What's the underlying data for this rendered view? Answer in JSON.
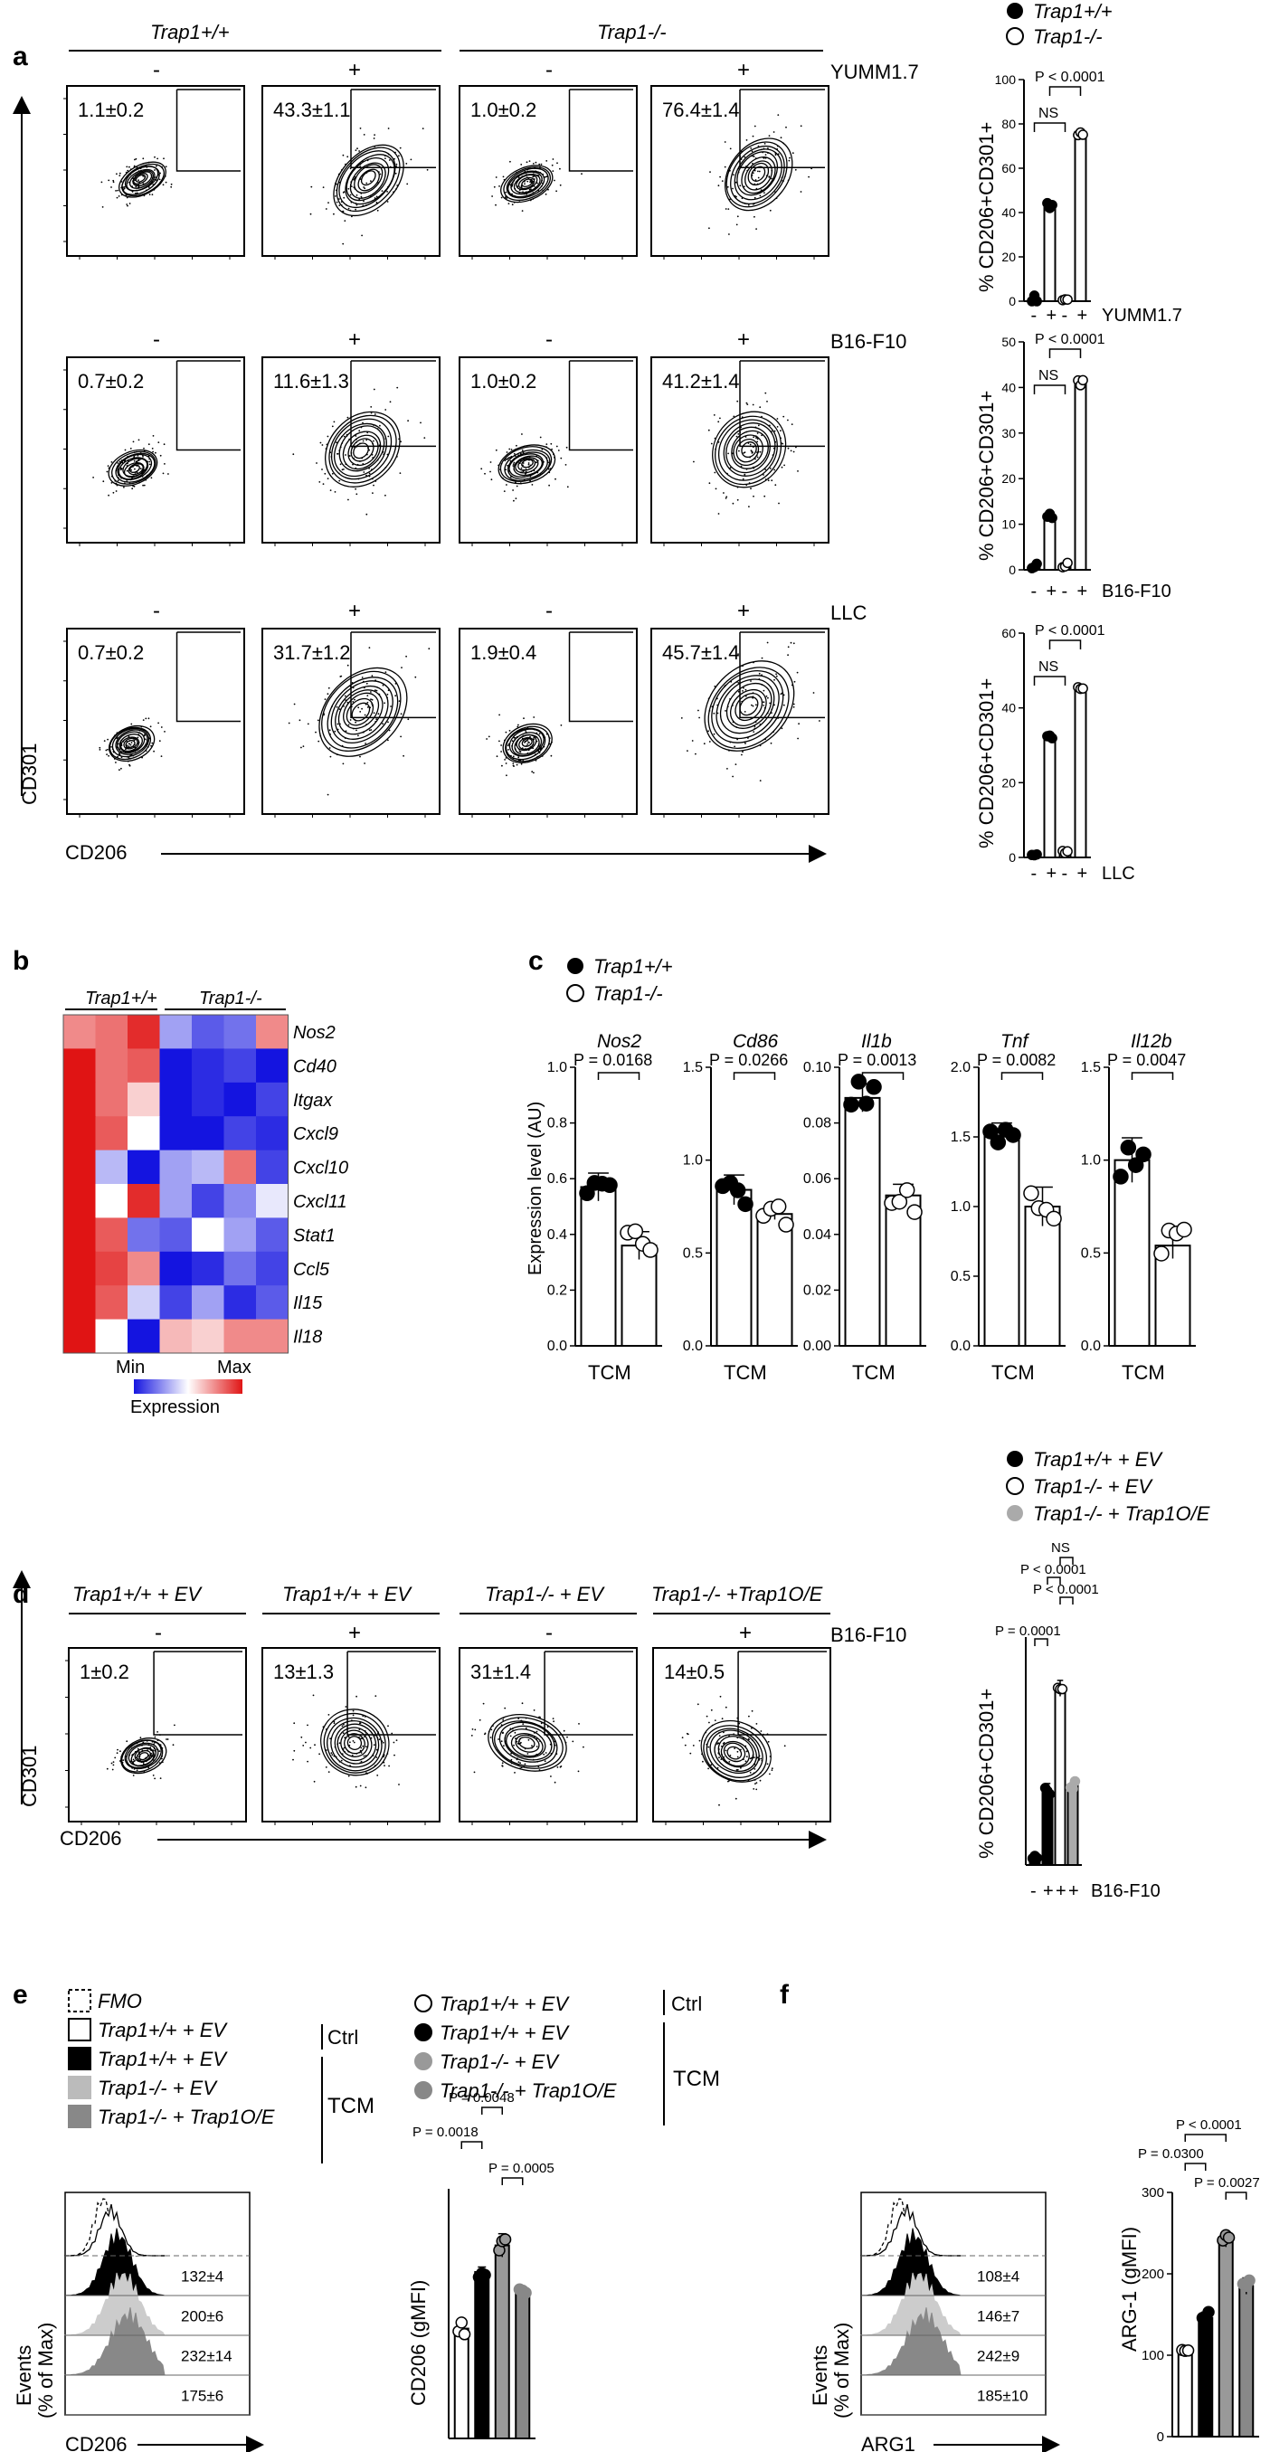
{
  "panel_a": {
    "label": "a",
    "group_headers": [
      "Trap1+/+",
      "Trap1-/-"
    ],
    "signs": [
      "-",
      "+",
      "-",
      "+"
    ],
    "row_labels": [
      "YUMM1.7",
      "B16-F10",
      "LLC"
    ],
    "percentages": [
      [
        "1.1±0.2",
        "43.3±1.1",
        "1.0±0.2",
        "76.4±1.4"
      ],
      [
        "0.7±0.2",
        "11.6±1.3",
        "1.0±0.2",
        "41.2±1.4"
      ],
      [
        "0.7±0.2",
        "31.7±1.2",
        "1.9±0.4",
        "45.7±1.4"
      ]
    ],
    "y_axis_label": "CD301",
    "x_axis_label": "CD206",
    "legend": [
      "Trap1+/+",
      "Trap1-/-"
    ]
  },
  "panel_b": {
    "label": "b",
    "group_headers": [
      "Trap1+/+",
      "Trap1-/-"
    ],
    "genes": [
      "Nos2",
      "Cd40",
      "Itgax",
      "Cxcl9",
      "Cxcl10",
      "Cxcl11",
      "Stat1",
      "Ccl5",
      "Il15",
      "Il18"
    ],
    "scale_min": "Min",
    "scale_max": "Max",
    "scale_title": "Expression"
  },
  "panel_c": {
    "label": "c",
    "legend": [
      "Trap1+/+",
      "Trap1-/-"
    ],
    "y_axis_label": "Expression level (AU)",
    "x_label": "TCM"
  },
  "panel_d": {
    "label": "d",
    "headers": [
      "Trap1+/+ + EV",
      "Trap1+/+ + EV",
      "Trap1-/- + EV",
      "Trap1-/- +Trap1O/E"
    ],
    "signs": [
      "-",
      "+",
      "-",
      "+"
    ],
    "row_label": "B16-F10",
    "percentages": [
      "1±0.2",
      "13±1.3",
      "31±1.4",
      "14±0.5"
    ],
    "y_axis_label": "CD301",
    "x_axis_label": "CD206",
    "legend": [
      "Trap1+/+ + EV",
      "Trap1-/- + EV",
      "Trap1-/- + Trap1O/E"
    ]
  },
  "panel_e": {
    "label": "e",
    "legend_left": [
      "FMO",
      "Trap1+/+ + EV",
      "Trap1+/+ + EV",
      "Trap1-/- + EV",
      "Trap1-/- + Trap1O/E"
    ],
    "legend_right": [
      "Trap1+/+ + EV",
      "Trap1+/+ + EV",
      "Trap1-/- + EV",
      "Trap1-/- + Trap1O/E"
    ],
    "ctrl": "Ctrl",
    "tcm": "TCM",
    "hist_values": [
      "132±4",
      "200±6",
      "232±14",
      "175±6"
    ],
    "hist_y_label_1": "Events",
    "hist_y_label_2": "(% of Max)",
    "hist_x_label": "CD206"
  },
  "panel_f": {
    "label": "f",
    "hist_values": [
      "108±4",
      "146±7",
      "242±9",
      "185±10"
    ],
    "hist_y_label_1": "Events",
    "hist_y_label_2": "(% of Max)",
    "hist_x_label": "ARG1"
  },
  "chart_data": [
    {
      "type": "bar",
      "panel": "a",
      "condition": "YUMM1.7",
      "categories": [
        "-",
        "+",
        "-",
        "+"
      ],
      "values": [
        1.1,
        43.3,
        1.0,
        76.4
      ],
      "ylabel": "% CD206+CD301+",
      "ylim": [
        0,
        100
      ],
      "yticks": [
        0,
        20,
        40,
        60,
        80,
        100
      ],
      "annotations": [
        "P < 0.0001",
        "NS"
      ]
    },
    {
      "type": "bar",
      "panel": "a",
      "condition": "B16-F10",
      "categories": [
        "-",
        "+",
        "-",
        "+"
      ],
      "values": [
        0.7,
        11.6,
        1.0,
        41.2
      ],
      "ylabel": "% CD206+CD301+",
      "ylim": [
        0,
        50
      ],
      "yticks": [
        0,
        10,
        20,
        30,
        40,
        50
      ],
      "annotations": [
        "P < 0.0001",
        "NS"
      ]
    },
    {
      "type": "bar",
      "panel": "a",
      "condition": "LLC",
      "categories": [
        "-",
        "+",
        "-",
        "+"
      ],
      "values": [
        0.7,
        31.7,
        1.9,
        45.7
      ],
      "ylabel": "% CD206+CD301+",
      "ylim": [
        0,
        60
      ],
      "yticks": [
        0,
        20,
        40,
        60
      ],
      "annotations": [
        "P < 0.0001",
        "NS"
      ]
    },
    {
      "type": "heatmap",
      "panel": "b",
      "rows": [
        "Nos2",
        "Cd40",
        "Itgax",
        "Cxcl9",
        "Cxcl10",
        "Cxcl11",
        "Stat1",
        "Ccl5",
        "Il15",
        "Il18"
      ],
      "values": [
        [
          0.75,
          0.8,
          0.95,
          0.3,
          0.15,
          0.2,
          0.75
        ],
        [
          1,
          0.8,
          0.85,
          0,
          0.05,
          0.1,
          0
        ],
        [
          1,
          0.8,
          0.6,
          0,
          0.05,
          0,
          0.1
        ],
        [
          1,
          0.85,
          0.5,
          0,
          0,
          0.1,
          0.05
        ],
        [
          1,
          0.35,
          0,
          0.3,
          0.35,
          0.8,
          0.1
        ],
        [
          1,
          0.5,
          0.95,
          0.3,
          0.1,
          0.25,
          0.45
        ],
        [
          1,
          0.85,
          0.2,
          0.15,
          0.5,
          0.3,
          0.15
        ],
        [
          1,
          0.9,
          0.75,
          0,
          0.05,
          0.2,
          0.1
        ],
        [
          1,
          0.85,
          0.4,
          0.1,
          0.3,
          0.05,
          0.15
        ],
        [
          1,
          0.5,
          0,
          0.65,
          0.6,
          0.75,
          0.75
        ]
      ]
    },
    {
      "type": "bar",
      "panel": "c",
      "gene": "Nos2",
      "categories": [
        "Trap1+/+",
        "Trap1-/-"
      ],
      "values": [
        0.57,
        0.36
      ],
      "ylim": [
        0,
        1.0
      ],
      "yticks": [
        0,
        0.2,
        0.4,
        0.6,
        0.8,
        1.0
      ],
      "p": "P = 0.0168"
    },
    {
      "type": "bar",
      "panel": "c",
      "gene": "Cd86",
      "categories": [
        "Trap1+/+",
        "Trap1-/-"
      ],
      "values": [
        0.84,
        0.71
      ],
      "ylim": [
        0,
        1.5
      ],
      "yticks": [
        0,
        0.5,
        1.0,
        1.5
      ],
      "p": "P = 0.0266"
    },
    {
      "type": "bar",
      "panel": "c",
      "gene": "Il1b",
      "categories": [
        "Trap1+/+",
        "Trap1-/-"
      ],
      "values": [
        0.089,
        0.054
      ],
      "ylim": [
        0,
        0.1
      ],
      "yticks": [
        0,
        0.02,
        0.04,
        0.06,
        0.08,
        0.1
      ],
      "p": "P = 0.0013"
    },
    {
      "type": "bar",
      "panel": "c",
      "gene": "Tnf",
      "categories": [
        "Trap1+/+",
        "Trap1-/-"
      ],
      "values": [
        1.53,
        1.0
      ],
      "ylim": [
        0,
        2.0
      ],
      "yticks": [
        0,
        0.5,
        1.0,
        1.5,
        2.0
      ],
      "p": "P = 0.0082"
    },
    {
      "type": "bar",
      "panel": "c",
      "gene": "Il12b",
      "categories": [
        "Trap1+/+",
        "Trap1-/-"
      ],
      "values": [
        1.0,
        0.54
      ],
      "ylim": [
        0,
        1.5
      ],
      "yticks": [
        0,
        0.5,
        1.0,
        1.5
      ],
      "p": "P = 0.0047"
    },
    {
      "type": "bar",
      "panel": "d",
      "categories": [
        "-",
        "+",
        "+",
        "+"
      ],
      "values": [
        1,
        13,
        31,
        14
      ],
      "ylabel": "% CD206+CD301+",
      "xlabel": "B16-F10",
      "annotations": [
        "NS",
        "P < 0.0001",
        "P < 0.0001",
        "P = 0.0001"
      ]
    },
    {
      "type": "bar",
      "panel": "e",
      "categories": [
        "Trap1+/+ + EV Ctrl",
        "Trap1+/+ + EV TCM",
        "Trap1-/- + EV TCM",
        "Trap1-/- + Trap1O/E TCM"
      ],
      "values": [
        132,
        200,
        232,
        175
      ],
      "ylabel": "CD206 (gMFI)",
      "annotations": [
        "P = 0.0018",
        "P = 0.0048",
        "P = 0.0005"
      ]
    },
    {
      "type": "bar",
      "panel": "f",
      "categories": [
        "Trap1+/+ + EV Ctrl",
        "Trap1+/+ + EV TCM",
        "Trap1-/- + EV TCM",
        "Trap1-/- + Trap1O/E TCM"
      ],
      "values": [
        108,
        146,
        242,
        185
      ],
      "ylabel": "ARG-1 (gMFI)",
      "ylim": [
        0,
        300
      ],
      "yticks": [
        0,
        100,
        200,
        300
      ],
      "annotations": [
        "P < 0.0001",
        "P = 0.0300",
        "P = 0.0027"
      ]
    }
  ]
}
